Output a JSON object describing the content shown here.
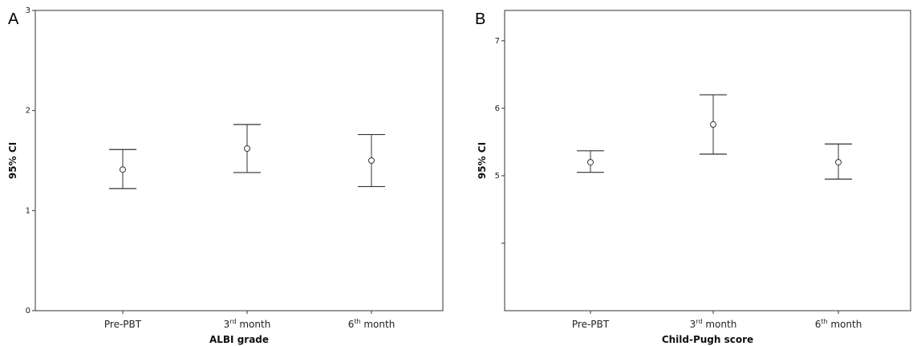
{
  "chart_data": [
    {
      "type": "errorbar",
      "panel_label": "A",
      "xlabel": "ALBI grade",
      "ylabel": "95% CI",
      "categories": [
        {
          "base": "Pre-PBT",
          "sup": "",
          "rest": ""
        },
        {
          "base": "3",
          "sup": "rd",
          "rest": " month"
        },
        {
          "base": "6",
          "sup": "th",
          "rest": " month"
        }
      ],
      "means": [
        1.41,
        1.62,
        1.5
      ],
      "lower": [
        1.22,
        1.38,
        1.24
      ],
      "upper": [
        1.61,
        1.86,
        1.76
      ],
      "ylim": [
        0,
        3
      ],
      "yticks": [
        0,
        1,
        2,
        3
      ]
    },
    {
      "type": "errorbar",
      "panel_label": "B",
      "xlabel": "Child-Pugh score",
      "ylabel": "95% CI",
      "categories": [
        {
          "base": "Pre-PBT",
          "sup": "",
          "rest": ""
        },
        {
          "base": "3",
          "sup": "rd",
          "rest": " month"
        },
        {
          "base": "6",
          "sup": "th",
          "rest": " month"
        }
      ],
      "means": [
        5.2,
        5.76,
        5.2
      ],
      "lower": [
        5.05,
        5.32,
        4.95
      ],
      "upper": [
        5.37,
        6.2,
        5.47
      ],
      "ylim": [
        3,
        7.45
      ],
      "yticks": [
        5,
        6,
        7
      ],
      "minor_ticks": [
        4
      ]
    }
  ]
}
